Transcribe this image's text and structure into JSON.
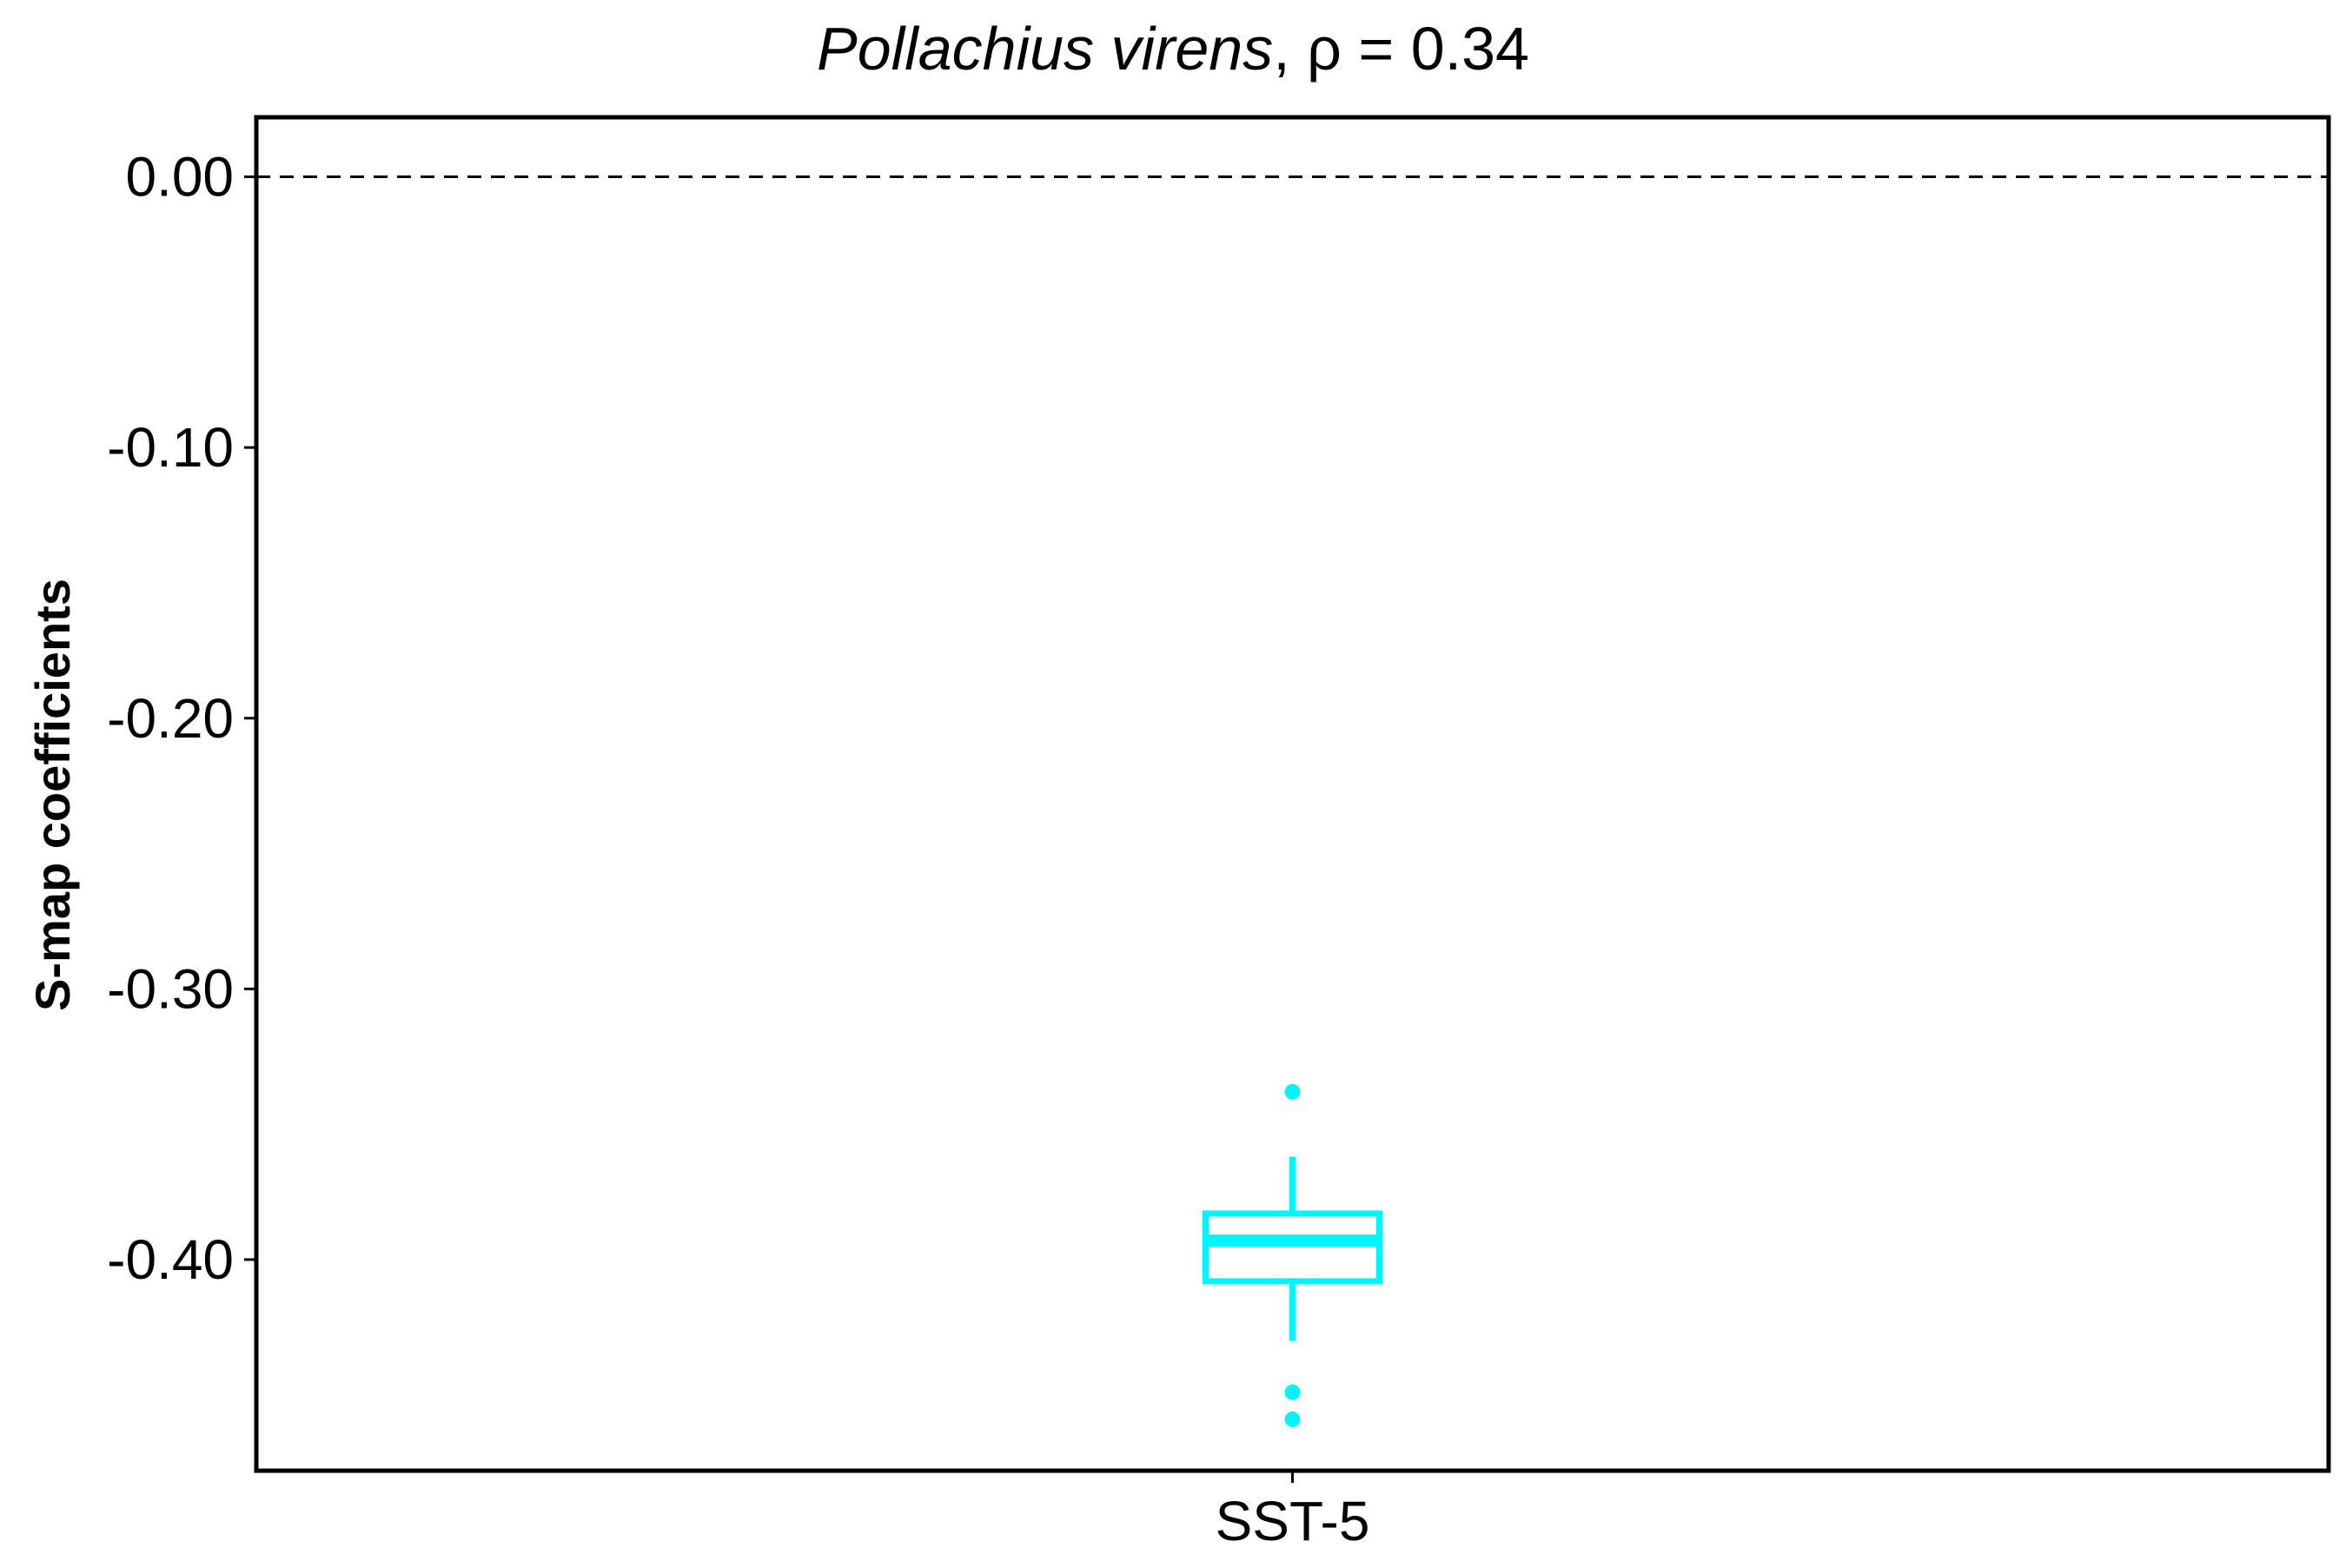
{
  "chart_data": {
    "type": "box",
    "title": {
      "species": "Pollachius virens",
      "separator": ", ",
      "stat": "ρ = 0.34"
    },
    "xlabel": "",
    "ylabel": "S-map coefficients",
    "ylim": [
      -0.478,
      0.022
    ],
    "yticks": [
      0.0,
      -0.1,
      -0.2,
      -0.3,
      -0.4
    ],
    "ytick_labels": [
      "0.00",
      "-0.10",
      "-0.20",
      "-0.30",
      "-0.40"
    ],
    "reference_line": {
      "y": 0.0,
      "style": "dashed"
    },
    "categories": [
      "SST-5"
    ],
    "boxes": [
      {
        "category": "SST-5",
        "whisker_low": -0.43,
        "q1": -0.408,
        "median": -0.393,
        "q3": -0.383,
        "whisker_high": -0.362,
        "outliers": [
          -0.338,
          -0.449,
          -0.459
        ],
        "color": "#00F5FF"
      }
    ],
    "grid": false,
    "legend": "none"
  }
}
